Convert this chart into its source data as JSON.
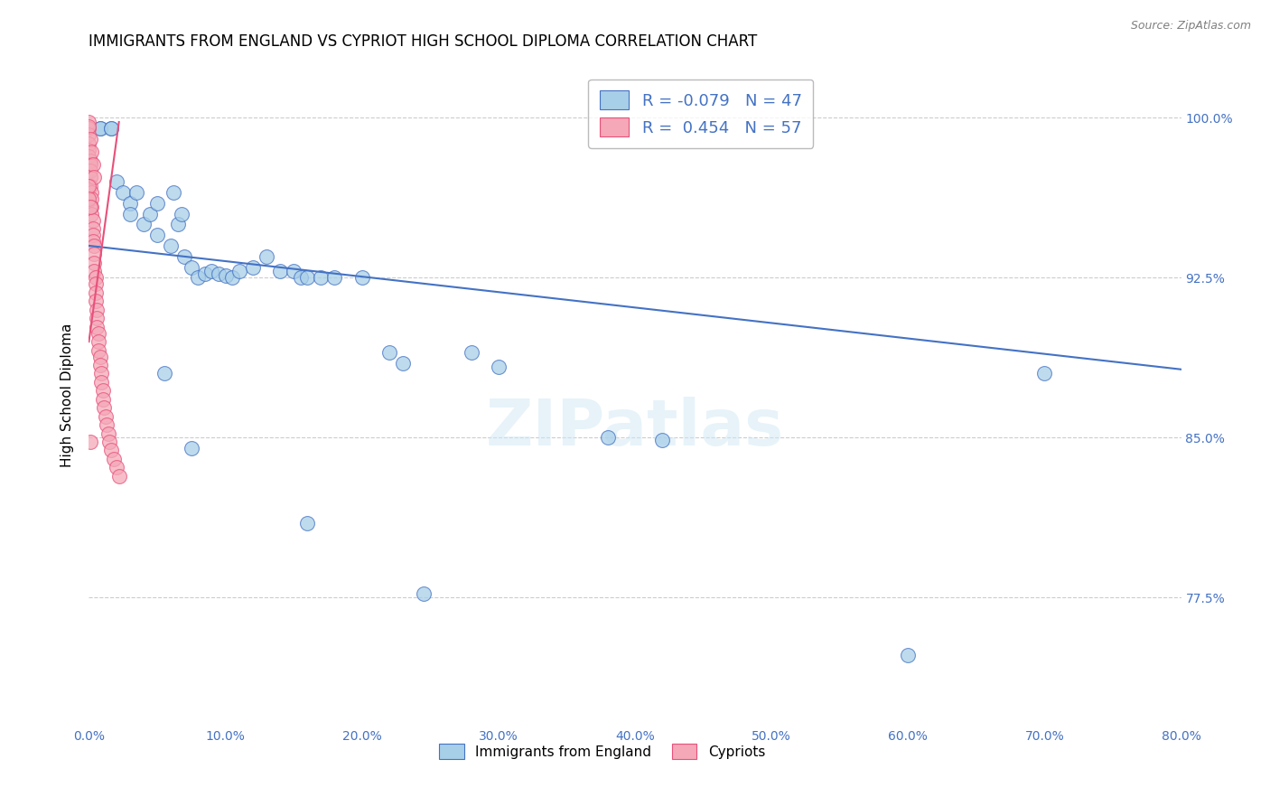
{
  "title": "IMMIGRANTS FROM ENGLAND VS CYPRIOT HIGH SCHOOL DIPLOMA CORRELATION CHART",
  "source": "Source: ZipAtlas.com",
  "ylabel": "High School Diploma",
  "y_tick_labels": [
    "100.0%",
    "92.5%",
    "85.0%",
    "77.5%"
  ],
  "y_tick_values": [
    1.0,
    0.925,
    0.85,
    0.775
  ],
  "x_range": [
    0.0,
    0.8
  ],
  "y_range": [
    0.715,
    1.025
  ],
  "legend_r_blue": "-0.079",
  "legend_n_blue": "47",
  "legend_r_pink": "0.454",
  "legend_n_pink": "57",
  "legend_label_blue": "Immigrants from England",
  "legend_label_pink": "Cypriots",
  "blue_color": "#a8cfe8",
  "pink_color": "#f4a8b8",
  "trendline_blue_color": "#4472c4",
  "trendline_pink_color": "#e8507a",
  "blue_scatter_x": [
    0.008,
    0.008,
    0.016,
    0.016,
    0.02,
    0.025,
    0.03,
    0.03,
    0.035,
    0.04,
    0.045,
    0.05,
    0.05,
    0.06,
    0.062,
    0.065,
    0.068,
    0.07,
    0.075,
    0.08,
    0.085,
    0.09,
    0.095,
    0.1,
    0.105,
    0.11,
    0.12,
    0.13,
    0.14,
    0.15,
    0.155,
    0.16,
    0.17,
    0.18,
    0.2,
    0.22,
    0.23,
    0.28,
    0.3,
    0.38,
    0.42,
    0.6,
    0.7,
    0.055,
    0.075,
    0.16,
    0.245
  ],
  "blue_scatter_y": [
    0.995,
    0.995,
    0.995,
    0.995,
    0.97,
    0.965,
    0.96,
    0.955,
    0.965,
    0.95,
    0.955,
    0.945,
    0.96,
    0.94,
    0.965,
    0.95,
    0.955,
    0.935,
    0.93,
    0.925,
    0.927,
    0.928,
    0.927,
    0.926,
    0.925,
    0.928,
    0.93,
    0.935,
    0.928,
    0.928,
    0.925,
    0.925,
    0.925,
    0.925,
    0.925,
    0.89,
    0.885,
    0.89,
    0.883,
    0.85,
    0.849,
    0.748,
    0.88,
    0.88,
    0.845,
    0.81,
    0.777
  ],
  "pink_scatter_x": [
    0.0,
    0.0,
    0.0,
    0.0,
    0.0,
    0.0,
    0.001,
    0.001,
    0.001,
    0.001,
    0.001,
    0.001,
    0.002,
    0.002,
    0.002,
    0.002,
    0.003,
    0.003,
    0.003,
    0.003,
    0.004,
    0.004,
    0.004,
    0.004,
    0.005,
    0.005,
    0.005,
    0.005,
    0.006,
    0.006,
    0.006,
    0.007,
    0.007,
    0.007,
    0.008,
    0.008,
    0.009,
    0.009,
    0.01,
    0.01,
    0.011,
    0.012,
    0.013,
    0.014,
    0.015,
    0.016,
    0.018,
    0.02,
    0.022,
    0.0,
    0.001,
    0.002,
    0.003,
    0.004,
    0.0,
    0.0,
    0.001
  ],
  "pink_scatter_y": [
    0.998,
    0.995,
    0.992,
    0.988,
    0.985,
    0.982,
    0.98,
    0.978,
    0.975,
    0.972,
    0.968,
    0.848,
    0.965,
    0.962,
    0.958,
    0.955,
    0.952,
    0.948,
    0.945,
    0.942,
    0.94,
    0.936,
    0.932,
    0.928,
    0.925,
    0.922,
    0.918,
    0.914,
    0.91,
    0.906,
    0.902,
    0.899,
    0.895,
    0.891,
    0.888,
    0.884,
    0.88,
    0.876,
    0.872,
    0.868,
    0.864,
    0.86,
    0.856,
    0.852,
    0.848,
    0.844,
    0.84,
    0.836,
    0.832,
    0.996,
    0.99,
    0.984,
    0.978,
    0.972,
    0.968,
    0.962,
    0.958
  ],
  "blue_trendline_x": [
    0.0,
    0.8
  ],
  "blue_trendline_y": [
    0.94,
    0.882
  ],
  "pink_trendline_x": [
    0.0,
    0.022
  ],
  "pink_trendline_y": [
    0.895,
    0.998
  ],
  "grid_color": "#cccccc",
  "background_color": "#ffffff",
  "label_color": "#4472c4",
  "title_fontsize": 12,
  "axis_label_fontsize": 11
}
